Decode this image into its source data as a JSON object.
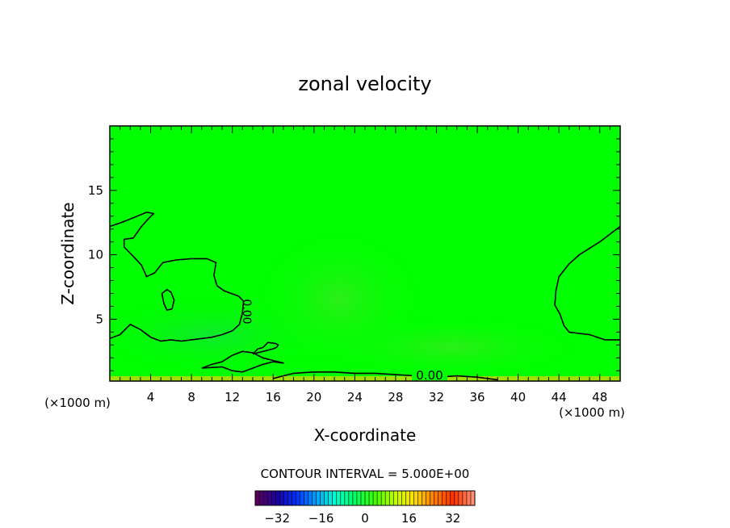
{
  "chart_data": {
    "type": "contour",
    "title": "zonal velocity",
    "xlabel": "X-coordinate",
    "ylabel": "Z-coordinate",
    "x_unit": "(×1000 m)",
    "z_unit": "(×1000 m)",
    "xlim": [
      0,
      50
    ],
    "ylim": [
      0.2,
      20
    ],
    "x_ticks": [
      4,
      8,
      12,
      16,
      20,
      24,
      28,
      32,
      36,
      40,
      44,
      48
    ],
    "y_ticks": [
      5,
      10,
      15
    ],
    "grid": false,
    "contour_interval_label": "CONTOUR INTERVAL = 5.000E+00",
    "contour_label": "0.00",
    "colorbar": {
      "range": [
        -40,
        40
      ],
      "ticks": [
        -32,
        -16,
        0,
        16,
        32
      ],
      "colors": [
        "#5a005a",
        "#1c00a0",
        "#0030ff",
        "#00a0ff",
        "#00ffd0",
        "#00ff60",
        "#40ff00",
        "#c0ff00",
        "#ffe000",
        "#ff8000",
        "#ff3000",
        "#ff9070"
      ]
    },
    "fill_color": "#00ff00",
    "zero_contours": [
      [
        [
          0,
          3.5
        ],
        [
          1,
          3.8
        ],
        [
          2,
          4.6
        ],
        [
          3,
          4.2
        ],
        [
          4,
          3.6
        ],
        [
          5,
          3.3
        ],
        [
          6,
          3.4
        ],
        [
          7,
          3.3
        ],
        [
          8,
          3.4
        ],
        [
          9,
          3.5
        ],
        [
          10,
          3.6
        ],
        [
          11,
          3.8
        ],
        [
          12,
          4.1
        ],
        [
          12.7,
          4.6
        ],
        [
          13,
          5.5
        ],
        [
          13.1,
          6.4
        ],
        [
          12.6,
          6.8
        ],
        [
          11.2,
          7.2
        ],
        [
          10.5,
          7.6
        ],
        [
          10.2,
          8.4
        ],
        [
          10.4,
          9.4
        ],
        [
          9.5,
          9.7
        ],
        [
          8,
          9.7
        ],
        [
          6.5,
          9.6
        ],
        [
          5.2,
          9.4
        ],
        [
          4.4,
          8.6
        ],
        [
          3.6,
          8.3
        ],
        [
          3.1,
          9.2
        ],
        [
          2.4,
          9.8
        ],
        [
          1.4,
          10.6
        ],
        [
          1.4,
          11.2
        ],
        [
          2.3,
          11.3
        ],
        [
          3.1,
          12.2
        ],
        [
          3.9,
          12.9
        ],
        [
          4.3,
          13.2
        ],
        [
          3.6,
          13.3
        ],
        [
          2.4,
          12.9
        ],
        [
          1.1,
          12.5
        ],
        [
          0,
          12.2
        ]
      ],
      [
        [
          5.1,
          7.0
        ],
        [
          5.6,
          7.3
        ],
        [
          6.0,
          7.1
        ],
        [
          6.3,
          6.5
        ],
        [
          6.1,
          5.8
        ],
        [
          5.6,
          5.7
        ],
        [
          5.3,
          6.2
        ],
        [
          5.1,
          7.0
        ]
      ],
      [
        [
          9,
          1.2
        ],
        [
          11,
          1.3
        ],
        [
          12,
          1.0
        ],
        [
          13,
          0.9
        ],
        [
          14,
          1.2
        ],
        [
          15,
          1.5
        ],
        [
          16,
          1.7
        ],
        [
          17,
          1.6
        ],
        [
          16,
          1.8
        ],
        [
          15,
          2.0
        ],
        [
          14,
          2.4
        ],
        [
          13,
          2.5
        ],
        [
          12,
          2.2
        ],
        [
          11,
          1.7
        ],
        [
          10,
          1.5
        ],
        [
          9,
          1.2
        ]
      ],
      [
        [
          14,
          2.3
        ],
        [
          15,
          2.5
        ],
        [
          16,
          2.7
        ],
        [
          16.3,
          2.8
        ],
        [
          16.5,
          3.0
        ],
        [
          16.3,
          3.1
        ],
        [
          15.5,
          3.2
        ],
        [
          15,
          2.8
        ],
        [
          14.5,
          2.7
        ],
        [
          14,
          2.3
        ]
      ],
      [
        [
          16,
          0.4
        ],
        [
          18,
          0.8
        ],
        [
          20,
          0.9
        ],
        [
          22,
          0.9
        ],
        [
          24,
          0.8
        ],
        [
          26,
          0.8
        ],
        [
          28,
          0.7
        ],
        [
          30,
          0.6
        ],
        [
          32,
          0.5
        ],
        [
          34,
          0.6
        ],
        [
          36,
          0.5
        ],
        [
          38,
          0.3
        ]
      ],
      [
        [
          50,
          12.2
        ],
        [
          48,
          11.0
        ],
        [
          46,
          10.0
        ],
        [
          45,
          9.3
        ],
        [
          44,
          8.3
        ],
        [
          43.7,
          7.2
        ],
        [
          43.6,
          6.1
        ],
        [
          44.1,
          5.4
        ],
        [
          44.5,
          4.5
        ],
        [
          45,
          4.0
        ],
        [
          47,
          3.8
        ],
        [
          48.5,
          3.4
        ],
        [
          50,
          3.4
        ]
      ]
    ]
  }
}
